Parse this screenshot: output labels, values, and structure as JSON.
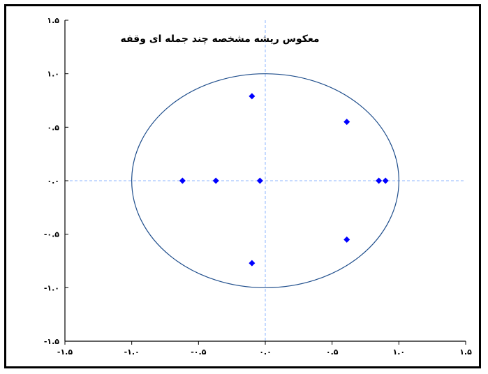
{
  "chart_data": {
    "type": "scatter",
    "title": "معکوس ریشه مشخصه چند جمله ای وقفه",
    "xlabel": "",
    "ylabel": "",
    "xlim": [
      -1.5,
      1.5
    ],
    "ylim": [
      -1.5,
      1.5
    ],
    "x_ticks": [
      -1.5,
      -1.0,
      -0.5,
      0.0,
      0.5,
      1.0,
      1.5
    ],
    "y_ticks": [
      -1.5,
      -1.0,
      -0.5,
      0.0,
      0.5,
      1.0,
      1.5
    ],
    "x_tick_labels": [
      "-۱.۵",
      "-۱.۰",
      "-۰.۵",
      "۰.۰",
      "۰.۵",
      "۱.۰",
      "۱.۵"
    ],
    "y_tick_labels": [
      "-۱.۵",
      "-۱.۰",
      "-۰.۵",
      "۰.۰",
      "۰.۵",
      "۱.۰",
      "۱.۵"
    ],
    "unit_circle": true,
    "crosshair": true,
    "grid": false,
    "colors": {
      "points": "#0000ff",
      "circle": "#1f4e8c",
      "crosshair": "#8cb4ff",
      "axis": "#000000"
    },
    "series": [
      {
        "points": [
          {
            "x": -0.1,
            "y": 0.79
          },
          {
            "x": -0.1,
            "y": -0.77
          },
          {
            "x": 0.61,
            "y": 0.55
          },
          {
            "x": 0.61,
            "y": -0.55
          },
          {
            "x": -0.62,
            "y": 0.0
          },
          {
            "x": -0.37,
            "y": 0.0
          },
          {
            "x": -0.04,
            "y": 0.0
          },
          {
            "x": 0.85,
            "y": 0.0
          },
          {
            "x": 0.9,
            "y": 0.0
          }
        ]
      }
    ]
  }
}
